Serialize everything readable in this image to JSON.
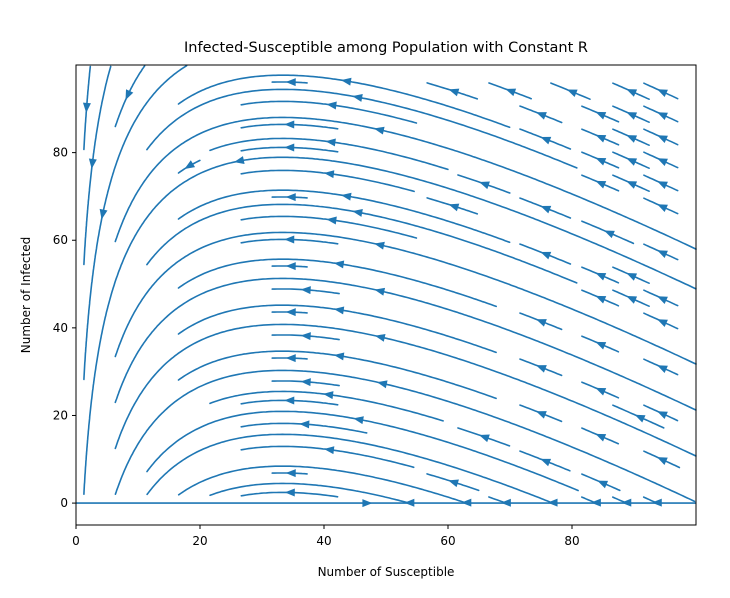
{
  "chart_data": {
    "type": "streamplot",
    "title": "Infected-Susceptible among Population with Constant R",
    "xlabel": "Number of Susceptible",
    "ylabel": "Number of Infected",
    "xlim": [
      0,
      100
    ],
    "ylim": [
      -5,
      100
    ],
    "xticks": [
      0,
      20,
      40,
      60,
      80
    ],
    "yticks": [
      0,
      20,
      40,
      60,
      80
    ],
    "xtick_labels": [
      "0",
      "20",
      "40",
      "60",
      "80"
    ],
    "ytick_labels": [
      "0",
      "20",
      "40",
      "60",
      "80"
    ],
    "line_color": "#1f77b4",
    "grid": false,
    "nullcline_y": 0,
    "sample_streamlines": [
      [
        [
          0,
          3
        ],
        [
          40,
          3.5
        ],
        [
          70,
          4.5
        ],
        [
          100,
          5
        ]
      ],
      [
        [
          0,
          17
        ],
        [
          15,
          17
        ],
        [
          22,
          20
        ],
        [
          25,
          35
        ],
        [
          23,
          50
        ],
        [
          25,
          65
        ],
        [
          30,
          80
        ],
        [
          45,
          98
        ]
      ],
      [
        [
          0,
          30
        ],
        [
          10,
          30
        ],
        [
          14,
          35
        ],
        [
          15,
          45
        ],
        [
          14,
          60
        ],
        [
          18,
          73
        ],
        [
          30,
          90
        ],
        [
          40,
          100
        ]
      ],
      [
        [
          12,
          60
        ],
        [
          8,
          80
        ],
        [
          8,
          95
        ],
        [
          13,
          97
        ],
        [
          30,
          95
        ],
        [
          55,
          80
        ],
        [
          80,
          60
        ],
        [
          100,
          40
        ]
      ],
      [
        [
          60,
          100
        ],
        [
          80,
          80
        ],
        [
          95,
          55
        ],
        [
          100,
          40
        ]
      ]
    ]
  }
}
